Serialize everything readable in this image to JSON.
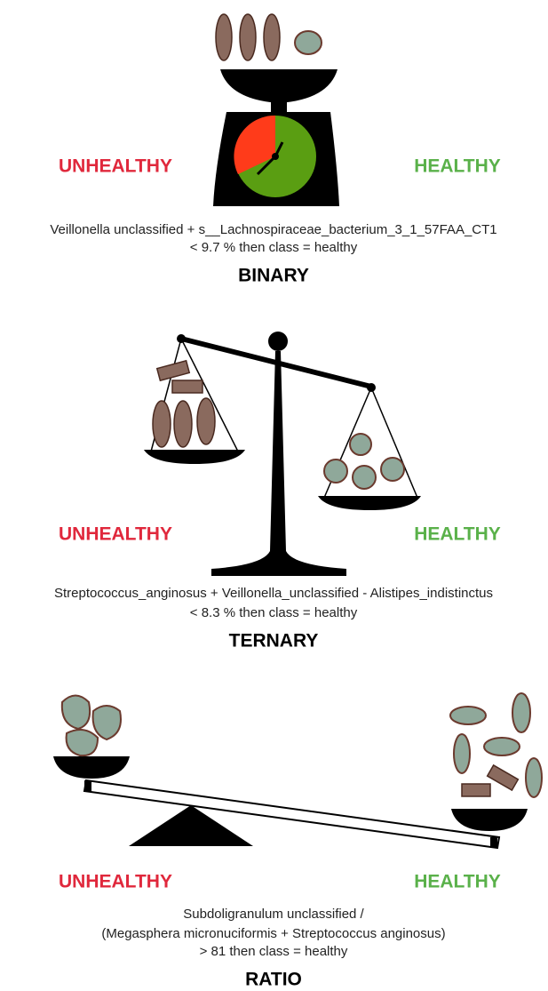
{
  "panels": [
    {
      "unhealthy": "UNHEALTHY",
      "healthy": "HEALTHY",
      "rule_lines": [
        "Veillonella unclassified + s__Lachnospiraceae_bacterium_3_1_57FAA_CT1",
        "< 9.7 % then class = healthy"
      ],
      "name": "BINARY"
    },
    {
      "unhealthy": "UNHEALTHY",
      "healthy": "HEALTHY",
      "rule_lines": [
        "Streptococcus_anginosus + Veillonella_unclassified - Alistipes_indistinctus",
        "< 8.3 % then class = healthy"
      ],
      "name": "TERNARY"
    },
    {
      "unhealthy": "UNHEALTHY",
      "healthy": "HEALTHY",
      "rule_lines": [
        "Subdoligranulum unclassified /",
        "(Megasphera micronuciformis + Streptococcus anginosus)",
        "> 81 then class = healthy"
      ],
      "name": "RATIO"
    }
  ]
}
